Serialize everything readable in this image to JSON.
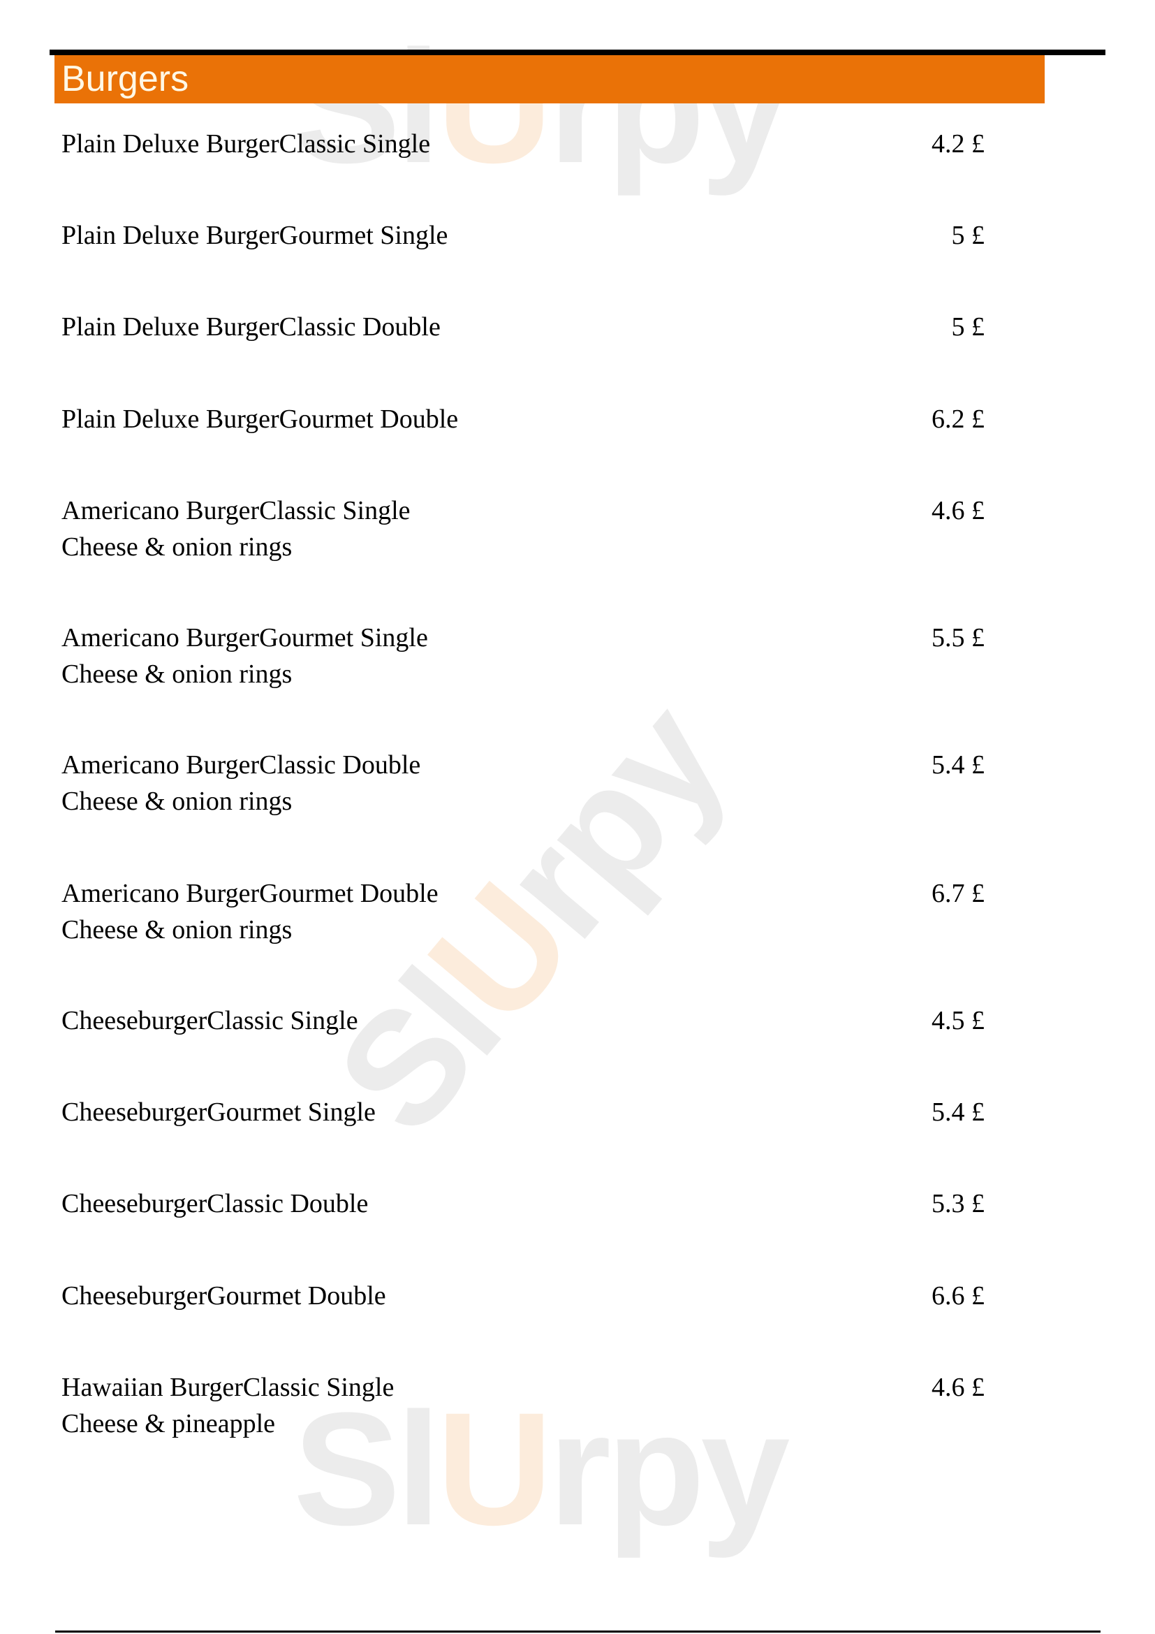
{
  "watermark": "SlUrpy",
  "section": {
    "title": "Burgers"
  },
  "items": [
    {
      "name": "Plain Deluxe BurgerClassic Single",
      "desc": "",
      "price": "4.2 £"
    },
    {
      "name": "Plain Deluxe BurgerGourmet Single",
      "desc": "",
      "price": "5 £"
    },
    {
      "name": "Plain Deluxe BurgerClassic Double",
      "desc": "",
      "price": "5 £"
    },
    {
      "name": "Plain Deluxe BurgerGourmet Double",
      "desc": "",
      "price": "6.2 £"
    },
    {
      "name": "Americano BurgerClassic Single",
      "desc": "Cheese & onion rings",
      "price": "4.6 £"
    },
    {
      "name": "Americano BurgerGourmet Single",
      "desc": "Cheese & onion rings",
      "price": "5.5 £"
    },
    {
      "name": "Americano BurgerClassic Double",
      "desc": "Cheese & onion rings",
      "price": "5.4 £"
    },
    {
      "name": "Americano BurgerGourmet Double",
      "desc": "Cheese & onion rings",
      "price": "6.7 £"
    },
    {
      "name": "CheeseburgerClassic Single",
      "desc": "",
      "price": "4.5 £"
    },
    {
      "name": "CheeseburgerGourmet Single",
      "desc": "",
      "price": "5.4 £"
    },
    {
      "name": "CheeseburgerClassic Double",
      "desc": "",
      "price": "5.3 £"
    },
    {
      "name": "CheeseburgerGourmet Double",
      "desc": "",
      "price": "6.6 £"
    },
    {
      "name": "Hawaiian BurgerClassic Single",
      "desc": "Cheese & pineapple",
      "price": "4.6 £"
    }
  ],
  "colors": {
    "header": "#ea7207",
    "header_text": "#fff8e6"
  }
}
